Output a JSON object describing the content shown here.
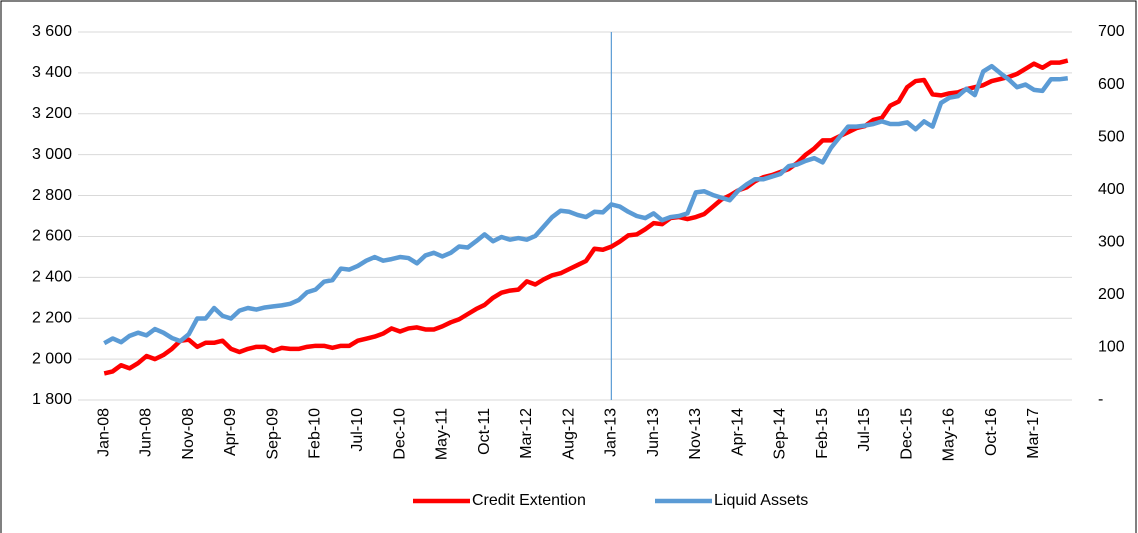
{
  "chart_data": {
    "type": "line",
    "categories": [
      "Jan-08",
      null,
      null,
      null,
      null,
      "Jun-08",
      null,
      null,
      null,
      null,
      "Nov-08",
      null,
      null,
      null,
      null,
      "Apr-09",
      null,
      null,
      null,
      null,
      "Sep-09",
      null,
      null,
      null,
      null,
      "Feb-10",
      null,
      null,
      null,
      null,
      "Jul-10",
      null,
      null,
      null,
      null,
      "Dec-10",
      null,
      null,
      null,
      null,
      "May-11",
      null,
      null,
      null,
      null,
      "Oct-11",
      null,
      null,
      null,
      null,
      "Mar-12",
      null,
      null,
      null,
      null,
      "Aug-12",
      null,
      null,
      null,
      null,
      "Jan-13",
      null,
      null,
      null,
      null,
      "Jun-13",
      null,
      null,
      null,
      null,
      "Nov-13",
      null,
      null,
      null,
      null,
      "Apr-14",
      null,
      null,
      null,
      null,
      "Sep-14",
      null,
      null,
      null,
      null,
      "Feb-15",
      null,
      null,
      null,
      null,
      "Jul-15",
      null,
      null,
      null,
      null,
      "Dec-15",
      null,
      null,
      null,
      null,
      "May-16",
      null,
      null,
      null,
      null,
      "Oct-16",
      null,
      null,
      null,
      null,
      "Mar-17",
      null,
      null,
      null,
      null
    ],
    "series": [
      {
        "name": "Credit Extention",
        "color": "#ff0000",
        "values": [
          1930,
          1940,
          1970,
          1955,
          1980,
          2015,
          2000,
          2020,
          2050,
          2090,
          2095,
          2060,
          2080,
          2080,
          2090,
          2050,
          2035,
          2050,
          2060,
          2060,
          2040,
          2055,
          2050,
          2050,
          2060,
          2065,
          2065,
          2055,
          2065,
          2065,
          2090,
          2100,
          2110,
          2125,
          2150,
          2135,
          2150,
          2155,
          2145,
          2145,
          2160,
          2180,
          2195,
          2220,
          2245,
          2265,
          2300,
          2325,
          2335,
          2340,
          2380,
          2365,
          2390,
          2410,
          2420,
          2440,
          2460,
          2480,
          2540,
          2535,
          2550,
          2575,
          2605,
          2610,
          2635,
          2665,
          2660,
          2690,
          2695,
          2685,
          2695,
          2710,
          2745,
          2780,
          2800,
          2825,
          2840,
          2870,
          2890,
          2900,
          2915,
          2930,
          2960,
          3000,
          3030,
          3070,
          3070,
          3090,
          3110,
          3130,
          3140,
          3170,
          3180,
          3240,
          3260,
          3330,
          3360,
          3365,
          3295,
          3290,
          3300,
          3305,
          3320,
          3330,
          3340,
          3360,
          3370,
          3380,
          3395,
          3420,
          3445,
          3425,
          3450,
          3450,
          3460
        ]
      },
      {
        "name": "Liquid Assets",
        "color": "#5b9bd5",
        "axis": "y2",
        "values": [
          108,
          117,
          110,
          122,
          128,
          123,
          135,
          128,
          118,
          112,
          125,
          155,
          155,
          175,
          160,
          155,
          170,
          175,
          172,
          176,
          178,
          180,
          183,
          190,
          205,
          210,
          225,
          228,
          250,
          248,
          255,
          265,
          272,
          265,
          268,
          272,
          270,
          260,
          275,
          280,
          273,
          280,
          292,
          290,
          302,
          315,
          302,
          310,
          305,
          308,
          305,
          312,
          330,
          348,
          360,
          358,
          352,
          348,
          358,
          357,
          372,
          368,
          358,
          350,
          346,
          355,
          342,
          348,
          350,
          355,
          395,
          397,
          390,
          385,
          380,
          398,
          410,
          420,
          420,
          425,
          430,
          445,
          448,
          455,
          460,
          452,
          480,
          500,
          520,
          520,
          522,
          525,
          530,
          525,
          525,
          528,
          515,
          530,
          520,
          565,
          575,
          578,
          592,
          580,
          625,
          635,
          622,
          610,
          595,
          600,
          590,
          588,
          610,
          610,
          612
        ]
      }
    ],
    "ylim": [
      1800,
      3600
    ],
    "yticks": [
      {
        "value": 1800,
        "label": "1 800"
      },
      {
        "value": 2000,
        "label": "2 000"
      },
      {
        "value": 2200,
        "label": "2 200"
      },
      {
        "value": 2400,
        "label": "2 400"
      },
      {
        "value": 2600,
        "label": "2 600"
      },
      {
        "value": 2800,
        "label": "2 800"
      },
      {
        "value": 3000,
        "label": "3 000"
      },
      {
        "value": 3200,
        "label": "3 200"
      },
      {
        "value": 3400,
        "label": "3 400"
      },
      {
        "value": 3600,
        "label": "3 600"
      }
    ],
    "y2lim": [
      0,
      700
    ],
    "y2ticks": [
      {
        "value": 0,
        "label": "-"
      },
      100,
      200,
      300,
      400,
      500,
      600,
      700
    ],
    "grid": true,
    "vertical_line": {
      "x": "Jan-13",
      "color": "#5b9bd5"
    },
    "legend": "bottom"
  }
}
